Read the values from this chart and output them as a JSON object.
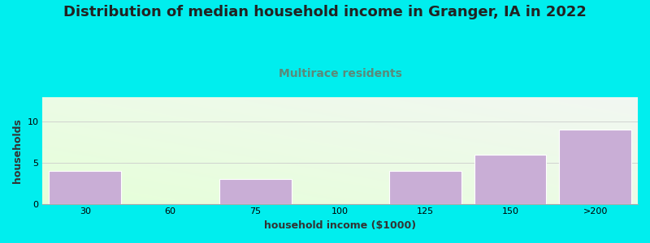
{
  "title": "Distribution of median household income in Granger, IA in 2022",
  "subtitle": "Multirace residents",
  "xlabel": "household income ($1000)",
  "ylabel": "households",
  "categories": [
    "30",
    "60",
    "75",
    "100",
    "125",
    "150",
    ">200"
  ],
  "values": [
    4,
    0,
    3,
    0,
    4,
    6,
    9
  ],
  "bar_color": "#c9aed6",
  "bar_edgecolor": "#ffffff",
  "background_outer": "#00eeee",
  "ylim": [
    0,
    13
  ],
  "yticks": [
    0,
    5,
    10
  ],
  "title_fontsize": 13,
  "subtitle_fontsize": 10,
  "subtitle_color": "#5a8a7a",
  "axis_label_fontsize": 9,
  "tick_fontsize": 8,
  "bar_width": 0.85
}
